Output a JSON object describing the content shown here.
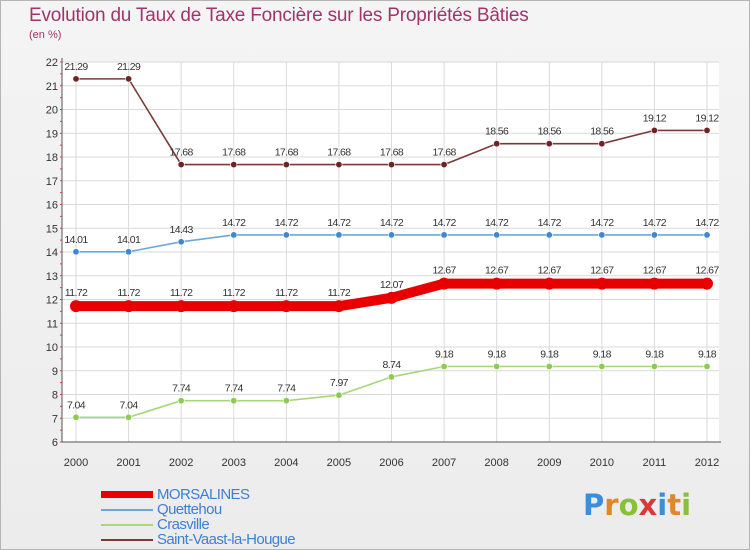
{
  "header": {
    "title": "Evolution du Taux de Taxe Foncière sur les Propriétés Bâties",
    "subtitle": "(en %)"
  },
  "logo": {
    "text": "Proxiti",
    "letters": [
      "P",
      "r",
      "o",
      "x",
      "i",
      "t",
      "i"
    ],
    "colors": [
      "#3d8ed8",
      "#e2862a",
      "#8bbf3a",
      "#d83a3a",
      "#3d8ed8",
      "#e2862a",
      "#8bbf3a"
    ]
  },
  "chart_data": {
    "type": "line",
    "title": "Evolution du Taux de Taxe Foncière sur les Propriétés Bâties",
    "subtitle": "(en %)",
    "xlabel": "",
    "ylabel": "",
    "categories": [
      "2000",
      "2001",
      "2002",
      "2003",
      "2004",
      "2005",
      "2006",
      "2007",
      "2008",
      "2009",
      "2010",
      "2011",
      "2012"
    ],
    "ylim": [
      6,
      22
    ],
    "yticks": [
      6,
      7,
      8,
      9,
      10,
      11,
      12,
      13,
      14,
      15,
      16,
      17,
      18,
      19,
      20,
      21,
      22
    ],
    "grid": true,
    "legend_position": "bottom-left",
    "series": [
      {
        "name": "MORSALINES",
        "color": "#e80000",
        "marker_fill": "#e80000",
        "weight": "thick",
        "values": [
          11.72,
          11.72,
          11.72,
          11.72,
          11.72,
          11.72,
          12.07,
          12.67,
          12.67,
          12.67,
          12.67,
          12.67,
          12.67
        ],
        "labels": [
          "11.72",
          "11.72",
          "11.72",
          "11.72",
          "11.72",
          "11.72",
          "12.07",
          "12.67",
          "12.67",
          "12.67",
          "12.67",
          "12.67",
          "12.67"
        ]
      },
      {
        "name": "Quettehou",
        "color": "#6fa6d6",
        "marker_fill": "#3d88cf",
        "weight": "thin",
        "values": [
          14.01,
          14.01,
          14.43,
          14.72,
          14.72,
          14.72,
          14.72,
          14.72,
          14.72,
          14.72,
          14.72,
          14.72,
          14.72
        ],
        "labels": [
          "14.01",
          "14.01",
          "14.43",
          "14.72",
          "14.72",
          "14.72",
          "14.72",
          "14.72",
          "14.72",
          "14.72",
          "14.72",
          "14.72",
          "14.72"
        ]
      },
      {
        "name": "Crasville",
        "color": "#a8d67a",
        "marker_fill": "#8ccc4c",
        "weight": "thin",
        "values": [
          7.04,
          7.04,
          7.74,
          7.74,
          7.74,
          7.97,
          8.74,
          9.18,
          9.18,
          9.18,
          9.18,
          9.18,
          9.18
        ],
        "labels": [
          "7.04",
          "7.04",
          "7.74",
          "7.74",
          "7.74",
          "7.97",
          "8.74",
          "9.18",
          "9.18",
          "9.18",
          "9.18",
          "9.18",
          "9.18"
        ]
      },
      {
        "name": "Saint-Vaast-la-Hougue",
        "color": "#7a3a3a",
        "marker_fill": "#6e2424",
        "weight": "thin",
        "values": [
          21.29,
          21.29,
          17.68,
          17.68,
          17.68,
          17.68,
          17.68,
          17.68,
          18.56,
          18.56,
          18.56,
          19.12,
          19.12
        ],
        "labels": [
          "21.29",
          "21.29",
          "17.68",
          "17.68",
          "17.68",
          "17.68",
          "17.68",
          "17.68",
          "18.56",
          "18.56",
          "18.56",
          "19.12",
          "19.12"
        ]
      }
    ]
  }
}
